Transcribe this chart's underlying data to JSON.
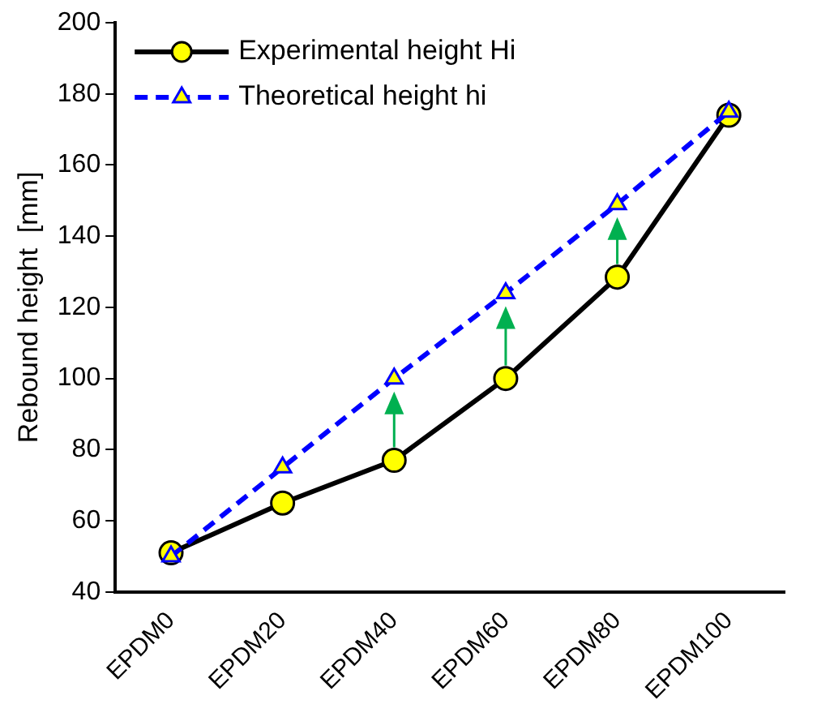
{
  "chart_data": {
    "type": "line",
    "ylabel": "Rebound height  [mm]",
    "categories": [
      "EPDM0",
      "EPDM20",
      "EPDM40",
      "EPDM60",
      "EPDM80",
      "EPDM100"
    ],
    "series": [
      {
        "name": "Experimental height Hi",
        "color": "#000000",
        "values": [
          51,
          65,
          77,
          100,
          128.5,
          174
        ],
        "marker": "circle",
        "line_style": "solid"
      },
      {
        "name": "Theoretical height hi",
        "color": "#0000ff",
        "values": [
          50,
          75,
          100,
          124,
          149,
          175
        ],
        "marker": "triangle",
        "line_style": "dashed"
      }
    ],
    "ylim": [
      40,
      200
    ],
    "yticks": [
      40,
      60,
      80,
      100,
      120,
      140,
      160,
      180,
      200
    ],
    "grid": false,
    "legend": "top left"
  }
}
